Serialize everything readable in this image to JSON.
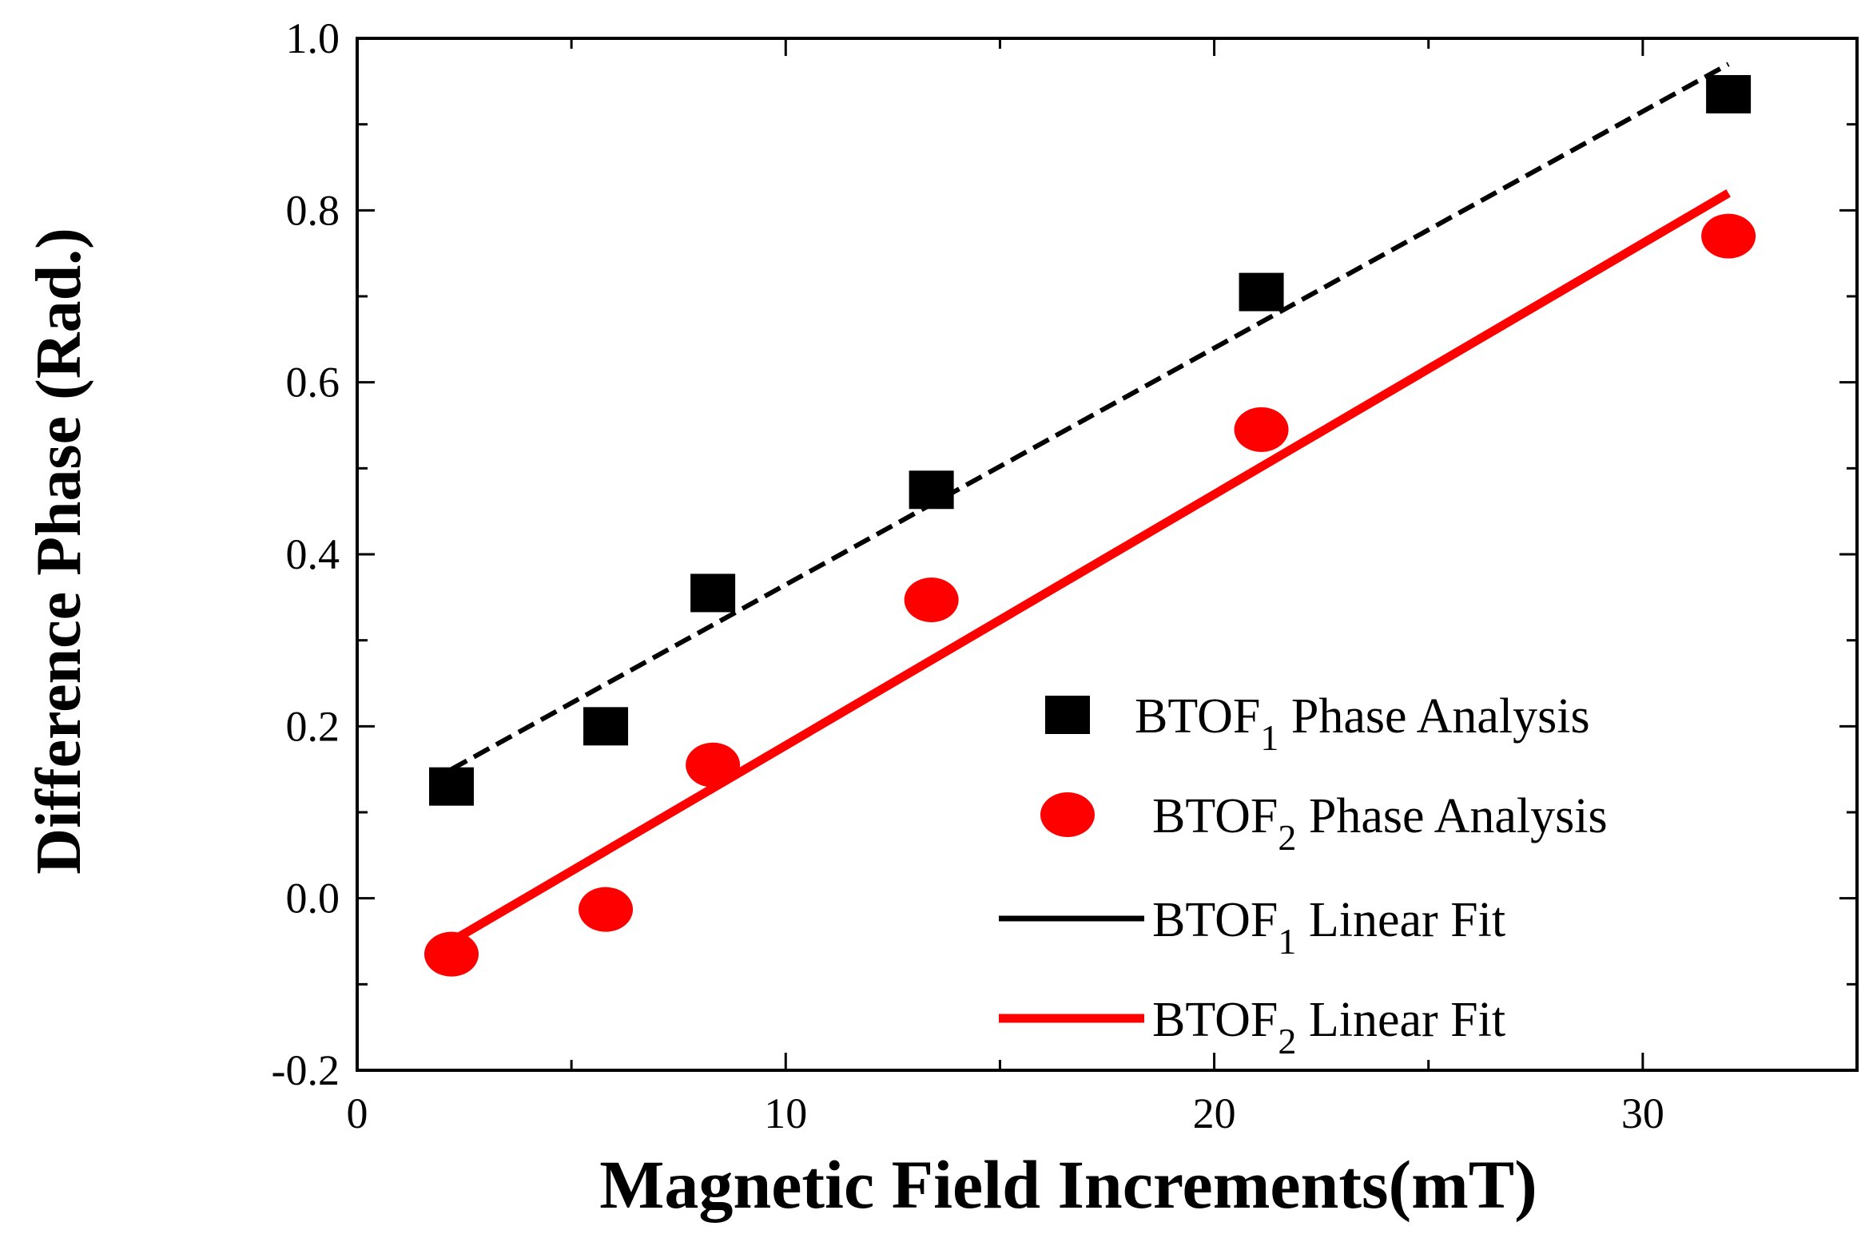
{
  "chart_data": {
    "type": "scatter",
    "xlabel": "Magnetic Field Increments(mT)",
    "ylabel": "Difference  Phase (Rad.)",
    "xlim": [
      0,
      35
    ],
    "ylim": [
      -0.2,
      1.0
    ],
    "x_ticks": [
      0,
      10,
      20,
      30
    ],
    "y_ticks": [
      -0.2,
      0.0,
      0.2,
      0.4,
      0.6,
      0.8,
      1.0
    ],
    "x_tick_labels": [
      "0",
      "10",
      "20",
      "30"
    ],
    "y_tick_labels": [
      "-0.2",
      "0.0",
      "0.2",
      "0.4",
      "0.6",
      "0.8",
      "1.0"
    ],
    "legend_position": "bottom-right",
    "series": [
      {
        "name": "BTOF1 Phase Analysis",
        "legend_main": "BTOF",
        "legend_sub": "1",
        "legend_rest": " Phase Analysis",
        "kind": "scatter",
        "marker": "square",
        "color": "#000000",
        "x": [
          2.2,
          5.8,
          8.3,
          13.4,
          21.1,
          32.0
        ],
        "y": [
          0.13,
          0.2,
          0.355,
          0.475,
          0.705,
          0.935
        ]
      },
      {
        "name": "BTOF2 Phase Analysis",
        "legend_main": "BTOF",
        "legend_sub": "2",
        "legend_rest": " Phase Analysis",
        "kind": "scatter",
        "marker": "circle",
        "color": "#ff0000",
        "x": [
          2.2,
          5.8,
          8.3,
          13.4,
          21.1,
          32.0
        ],
        "y": [
          -0.065,
          -0.013,
          0.155,
          0.347,
          0.545,
          0.77
        ]
      },
      {
        "name": "BTOF1 Linear Fit",
        "legend_main": "BTOF",
        "legend_sub": "1",
        "legend_rest": " Linear Fit",
        "kind": "line",
        "style": "dashed",
        "color": "#000000",
        "x": [
          2.2,
          32.0
        ],
        "y": [
          0.15,
          0.97
        ]
      },
      {
        "name": "BTOF2 Linear Fit",
        "legend_main": "BTOF",
        "legend_sub": "2",
        "legend_rest": " Linear Fit",
        "kind": "line",
        "style": "solid",
        "color": "#ff0000",
        "x": [
          2.2,
          32.0
        ],
        "y": [
          -0.05,
          0.82
        ]
      }
    ]
  }
}
